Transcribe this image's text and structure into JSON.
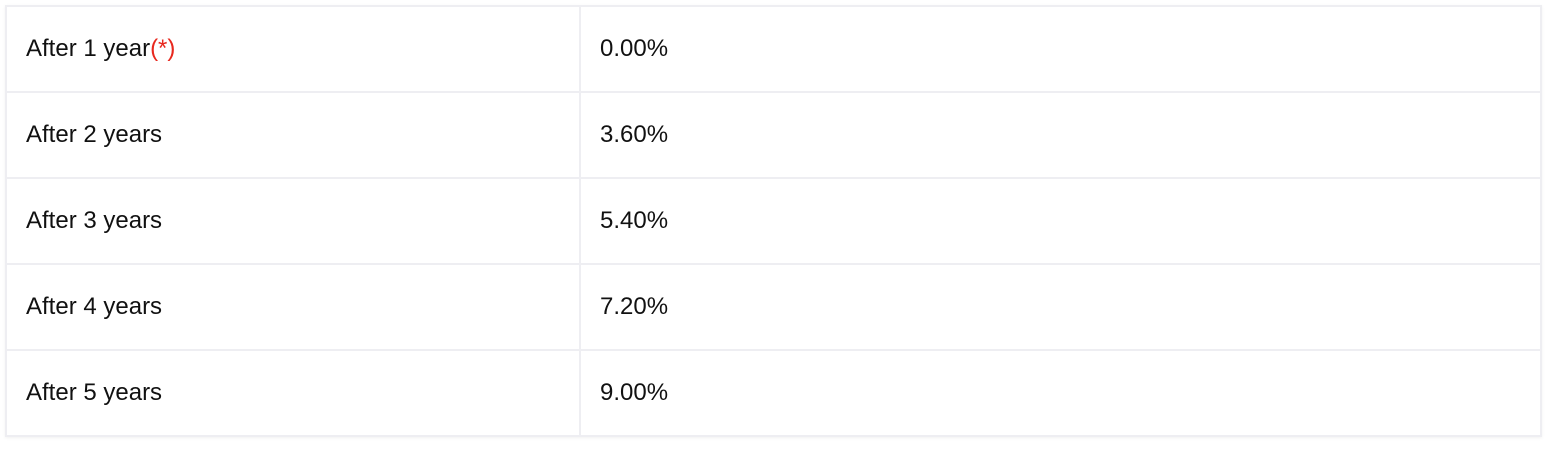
{
  "table": {
    "rows": [
      {
        "label": "After 1 year",
        "note": "(*)",
        "value": "0.00%"
      },
      {
        "label": "After 2 years",
        "value": "3.60%"
      },
      {
        "label": "After 3 years",
        "value": "5.40%"
      },
      {
        "label": "After 4 years",
        "value": "7.20%"
      },
      {
        "label": "After 5 years",
        "value": "9.00%"
      }
    ]
  },
  "colors": {
    "note": "#e8281e",
    "border": "#eeeef2"
  }
}
